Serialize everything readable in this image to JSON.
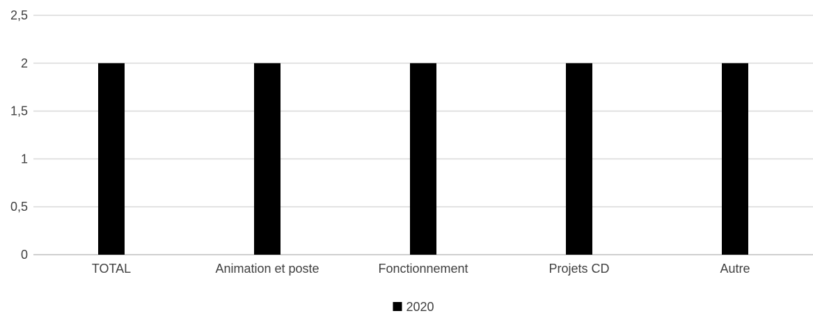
{
  "chart_data": {
    "type": "bar",
    "categories": [
      "TOTAL",
      "Animation et poste",
      "Fonctionnement",
      "Projets CD",
      "Autre"
    ],
    "series": [
      {
        "name": "2020",
        "values": [
          2,
          2,
          2,
          2,
          2
        ],
        "color": "#000000"
      }
    ],
    "ylim": [
      0,
      2.5
    ],
    "yticks": [
      "0",
      "0,5",
      "1",
      "1,5",
      "2",
      "2,5"
    ],
    "grid": true,
    "legend_position": "bottom"
  }
}
